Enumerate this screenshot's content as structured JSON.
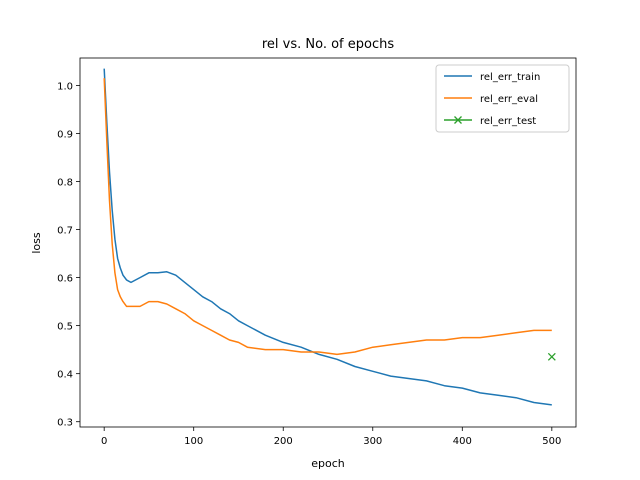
{
  "chart_data": {
    "type": "line",
    "title": "rel vs. No. of epochs",
    "xlabel": "epoch",
    "ylabel": "loss",
    "xlim": [
      -27,
      527
    ],
    "ylim": [
      0.289,
      1.057
    ],
    "xticks": [
      0,
      100,
      200,
      300,
      400,
      500
    ],
    "yticks": [
      0.3,
      0.4,
      0.5,
      0.6,
      0.7,
      0.8,
      0.9,
      1.0
    ],
    "ytick_labels": [
      "0.3",
      "0.4",
      "0.5",
      "0.6",
      "0.7",
      "0.8",
      "0.9",
      "1.0"
    ],
    "grid": false,
    "legend_position": "top-right",
    "series": [
      {
        "name": "rel_err_train",
        "color": "#1f77b4",
        "marker": "none",
        "x": [
          0,
          3,
          6,
          9,
          12,
          15,
          18,
          21,
          25,
          30,
          40,
          50,
          60,
          70,
          80,
          90,
          100,
          110,
          120,
          130,
          140,
          150,
          160,
          180,
          200,
          220,
          240,
          260,
          280,
          300,
          320,
          340,
          360,
          380,
          400,
          420,
          440,
          460,
          480,
          500
        ],
        "values": [
          1.035,
          0.92,
          0.82,
          0.74,
          0.68,
          0.64,
          0.62,
          0.605,
          0.595,
          0.59,
          0.6,
          0.61,
          0.61,
          0.612,
          0.605,
          0.59,
          0.575,
          0.56,
          0.55,
          0.535,
          0.525,
          0.51,
          0.5,
          0.48,
          0.465,
          0.455,
          0.44,
          0.43,
          0.415,
          0.405,
          0.395,
          0.39,
          0.385,
          0.375,
          0.37,
          0.36,
          0.355,
          0.35,
          0.34,
          0.335
        ]
      },
      {
        "name": "rel_err_eval",
        "color": "#ff7f0e",
        "marker": "none",
        "x": [
          0,
          3,
          6,
          9,
          12,
          15,
          18,
          21,
          25,
          30,
          40,
          50,
          60,
          70,
          80,
          90,
          100,
          110,
          120,
          130,
          140,
          150,
          160,
          180,
          200,
          220,
          240,
          260,
          280,
          300,
          320,
          340,
          360,
          380,
          400,
          420,
          440,
          460,
          480,
          500
        ],
        "values": [
          1.015,
          0.88,
          0.76,
          0.67,
          0.61,
          0.575,
          0.56,
          0.55,
          0.54,
          0.54,
          0.54,
          0.55,
          0.55,
          0.545,
          0.535,
          0.525,
          0.51,
          0.5,
          0.49,
          0.48,
          0.47,
          0.465,
          0.455,
          0.45,
          0.45,
          0.445,
          0.445,
          0.44,
          0.445,
          0.455,
          0.46,
          0.465,
          0.47,
          0.47,
          0.475,
          0.475,
          0.48,
          0.485,
          0.49,
          0.49
        ]
      },
      {
        "name": "rel_err_test",
        "color": "#2ca02c",
        "marker": "x",
        "x": [
          500
        ],
        "values": [
          0.435
        ]
      }
    ]
  }
}
